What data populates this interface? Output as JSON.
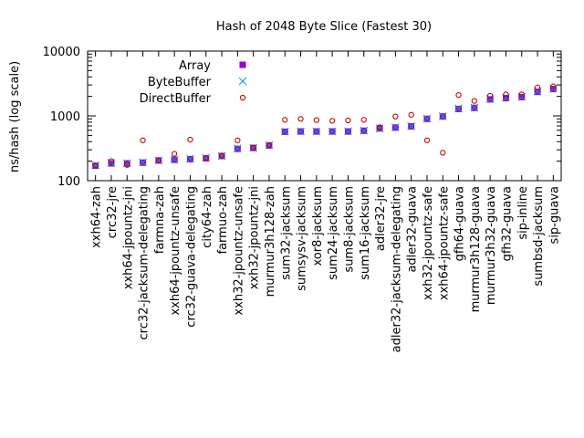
{
  "chart_data": {
    "type": "scatter",
    "title": "Hash of 2048 Byte Slice (Fastest 30)",
    "xlabel": "",
    "ylabel": "ns/hash (log scale)",
    "yscale": "log",
    "ylim": [
      100,
      10000
    ],
    "yticks": [
      100,
      1000,
      10000
    ],
    "ytick_labels": [
      "100",
      "1000",
      "10000"
    ],
    "legend_position": "top-left",
    "categories": [
      "xxh64-zah",
      "crc32-jre",
      "xxh64-jpountz-jni",
      "crc32-jacksum-delegating",
      "farmna-zah",
      "xxh64-jpountz-unsafe",
      "crc32-guava-delegating",
      "city64-zah",
      "farmuo-zah",
      "xxh32-jpountz-unsafe",
      "xxh32-jpountz-jni",
      "murmur3h128-zah",
      "sum32-jacksum",
      "sumsysv-jacksum",
      "xor8-jacksum",
      "sum24-jacksum",
      "sum8-jacksum",
      "sum16-jacksum",
      "adler32-jre",
      "adler32-jacksum-delegating",
      "adler32-guava",
      "xxh32-jpountz-safe",
      "xxh64-jpountz-safe",
      "gfh64-guava",
      "murmur3h128-guava",
      "murmur3h32-guava",
      "gfh32-guava",
      "sip-inline",
      "sumbsd-jacksum",
      "sip-guava"
    ],
    "series": [
      {
        "name": "Array",
        "marker": "filled-square",
        "color": "#9400d3",
        "values": [
          170,
          185,
          185,
          190,
          205,
          210,
          215,
          222,
          240,
          310,
          320,
          350,
          570,
          575,
          575,
          575,
          575,
          590,
          640,
          660,
          690,
          900,
          980,
          1280,
          1330,
          1800,
          1880,
          1950,
          2350,
          2600
        ]
      },
      {
        "name": "ByteBuffer",
        "marker": "cross",
        "color": "#009ed7",
        "values": [
          172,
          188,
          185,
          192,
          205,
          212,
          218,
          225,
          240,
          315,
          322,
          355,
          575,
          575,
          575,
          575,
          580,
          590,
          640,
          665,
          695,
          910,
          985,
          1300,
          1350,
          1820,
          1900,
          1960,
          2380,
          2620
        ]
      },
      {
        "name": "DirectBuffer",
        "marker": "open-circle",
        "color": "#cc0000",
        "values": [
          170,
          200,
          175,
          420,
          205,
          260,
          430,
          220,
          245,
          420,
          325,
          355,
          870,
          900,
          860,
          840,
          850,
          870,
          670,
          980,
          1040,
          420,
          270,
          2100,
          1700,
          2050,
          2150,
          2150,
          2750,
          2850
        ]
      }
    ]
  }
}
